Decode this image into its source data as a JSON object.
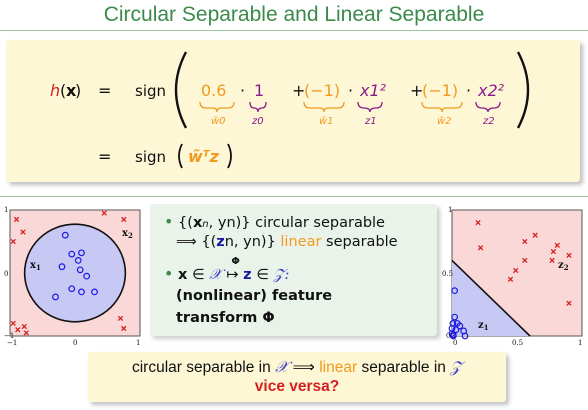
{
  "title": "Circular Separable and Linear Separable",
  "formula": {
    "h_label": "h",
    "x_bold": "x",
    "equals": "=",
    "sign": "sign",
    "terms": [
      {
        "coef": "0.6",
        "under_coef": "w̃0",
        "feature": "1",
        "under_feature": "z0",
        "prefix": ""
      },
      {
        "coef": "(−1)",
        "under_coef": "w̃1",
        "feature": "x1²",
        "under_feature": "z1",
        "prefix": "+"
      },
      {
        "coef": "(−1)",
        "under_coef": "w̃2",
        "feature": "x2²",
        "under_feature": "z2",
        "prefix": "+"
      }
    ],
    "line2": "w̃ᵀz"
  },
  "bullets": {
    "b1_line1_prefix": "{(",
    "b1_line1_x": "x",
    "b1_line1_mid": "n",
    "b1_line1_suffix": ", yn)} circular separable",
    "b1_line2_prefix": "⟹ {(",
    "b1_line2_z": "z",
    "b1_line2_suffix": "n, yn)}",
    "b1_line2_linear": "linear",
    "b1_line2_end": "separable",
    "b2_line1_x": "x",
    "b2_line1_in": "∈",
    "b2_line1_X": "𝒳",
    "b2_line1_map": "↦",
    "b2_line1_phi": "Φ",
    "b2_line1_z": "z",
    "b2_line1_Z": "𝒵:",
    "b2_line2": "(nonlinear) feature",
    "b2_line3": "transform Φ"
  },
  "conclusion": {
    "line1_a": "circular separable in",
    "line1_X": "𝒳",
    "line1_implies": "⟹",
    "line1_linear": "linear",
    "line1_b": "separable in",
    "line1_Z": "𝒵",
    "line2": "vice versa?"
  },
  "colors": {
    "title_green": "#3b8a4a",
    "box_yellow": "#fdf7d6",
    "box_green": "#e9f3ea",
    "orange": "#f29a1f",
    "purple": "#8b1a8b",
    "blue": "#1a1aa0",
    "red": "#d62020",
    "pink_region": "#fbd8d8",
    "blue_region": "#c8c8f4"
  },
  "chart_data": [
    {
      "type": "scatter",
      "name": "x-space",
      "xlim": [
        -1,
        1
      ],
      "ylim": [
        -1,
        1
      ],
      "xticks": [
        "−1",
        "0",
        "1"
      ],
      "yticks": [
        "−1",
        "0",
        "1"
      ],
      "axis_labels": [
        "x1",
        "x2"
      ],
      "circle_radius": 0.775,
      "positive": [
        [
          -0.15,
          0.6
        ],
        [
          -0.2,
          0.1
        ],
        [
          -0.05,
          0.3
        ],
        [
          0.1,
          0.32
        ],
        [
          0.05,
          0.2
        ],
        [
          0.08,
          0.05
        ],
        [
          0.18,
          -0.05
        ],
        [
          -0.3,
          -0.38
        ],
        [
          -0.05,
          -0.25
        ],
        [
          0.1,
          -0.3
        ],
        [
          0.3,
          -0.3
        ]
      ],
      "negative": [
        [
          -0.9,
          0.85
        ],
        [
          -0.8,
          0.65
        ],
        [
          -0.95,
          0.5
        ],
        [
          0.45,
          0.95
        ],
        [
          0.75,
          0.85
        ],
        [
          -0.95,
          -0.8
        ],
        [
          -0.88,
          -0.9
        ],
        [
          -0.78,
          -0.85
        ],
        [
          -0.75,
          -0.95
        ],
        [
          0.7,
          -0.72
        ],
        [
          0.75,
          -0.88
        ]
      ]
    },
    {
      "type": "scatter",
      "name": "z-space",
      "xlim": [
        0,
        1
      ],
      "ylim": [
        0,
        1
      ],
      "xticks": [
        "0",
        "0.5",
        "1"
      ],
      "yticks": [
        "0",
        "0.5",
        "1"
      ],
      "axis_labels": [
        "z1",
        "z2"
      ],
      "boundary": "z1 + z2 = 0.6",
      "positive": [
        [
          0.02,
          0.36
        ],
        [
          0.04,
          0.1
        ],
        [
          0.01,
          0.01
        ],
        [
          0.007,
          0.1
        ],
        [
          0.06,
          0.08
        ],
        [
          0.01,
          0.0
        ],
        [
          0.09,
          0.04
        ],
        [
          0.02,
          0.15
        ],
        [
          0.0,
          0.06
        ],
        [
          0.1,
          0.0
        ],
        [
          0.03,
          0.05
        ],
        [
          0.0,
          0.02
        ]
      ],
      "negative": [
        [
          0.81,
          0.72
        ],
        [
          0.64,
          0.8
        ],
        [
          0.9,
          0.26
        ],
        [
          0.2,
          0.9
        ],
        [
          0.56,
          0.75
        ],
        [
          0.9,
          0.64
        ],
        [
          0.77,
          0.6
        ],
        [
          0.78,
          0.67
        ],
        [
          0.49,
          0.52
        ],
        [
          0.56,
          0.6
        ],
        [
          0.45,
          0.45
        ],
        [
          0.22,
          0.7
        ]
      ]
    }
  ]
}
